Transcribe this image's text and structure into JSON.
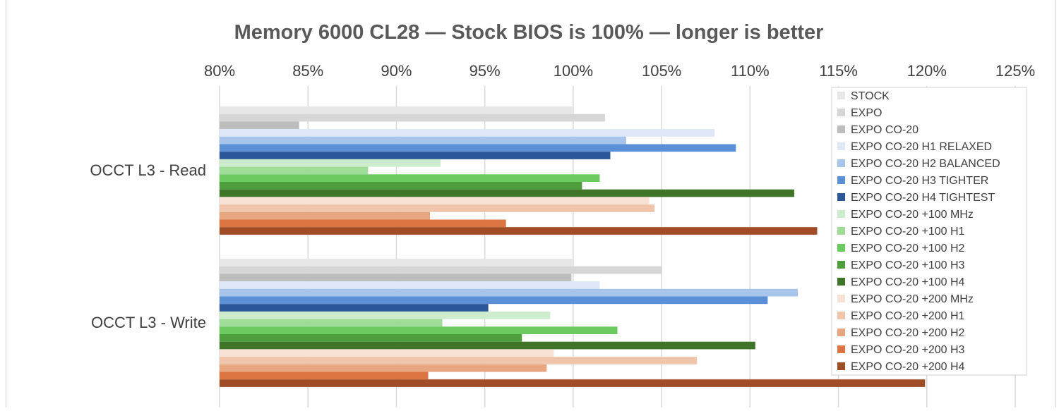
{
  "chart_data": {
    "type": "bar",
    "orientation": "horizontal",
    "title": "Memory 6000 CL28 — Stock BIOS is 100% — longer is better",
    "xlabel": "",
    "ylabel": "",
    "x_axis_position": "top",
    "xlim": [
      0.8,
      1.25
    ],
    "x_ticks": [
      0.8,
      0.85,
      0.9,
      0.95,
      1.0,
      1.05,
      1.1,
      1.15,
      1.2,
      1.25
    ],
    "x_tick_labels": [
      "80%",
      "85%",
      "90%",
      "95%",
      "100%",
      "105%",
      "110%",
      "115%",
      "120%",
      "125%"
    ],
    "grid": "vertical",
    "legend_position": "right",
    "categories": [
      "OCCT L3 - Read",
      "OCCT L3 - Write"
    ],
    "series": [
      {
        "name": "STOCK",
        "color": "#e7e7e7",
        "values": [
          1.0,
          1.0
        ]
      },
      {
        "name": "EXPO",
        "color": "#d6d6d6",
        "values": [
          1.018,
          1.05
        ]
      },
      {
        "name": "EXPO CO-20",
        "color": "#bdbdbd",
        "values": [
          0.845,
          0.999
        ]
      },
      {
        "name": "EXPO CO-20 H1 RELAXED",
        "color": "#dde7f6",
        "values": [
          1.08,
          1.015
        ]
      },
      {
        "name": "EXPO CO-20 H2 BALANCED",
        "color": "#a7c4ea",
        "values": [
          1.03,
          1.127
        ]
      },
      {
        "name": "EXPO CO-20 H3 TIGHTER",
        "color": "#5b8fd6",
        "values": [
          1.092,
          1.11
        ]
      },
      {
        "name": "EXPO CO-20 H4 TIGHTEST",
        "color": "#2b579a",
        "values": [
          1.021,
          0.952
        ]
      },
      {
        "name": "EXPO CO-20 +100 MHz",
        "color": "#cdeccd",
        "values": [
          0.925,
          0.987
        ]
      },
      {
        "name": "EXPO CO-20 +100 H1",
        "color": "#9edc98",
        "values": [
          0.884,
          0.926
        ]
      },
      {
        "name": "EXPO CO-20 +100 H2",
        "color": "#6ccb60",
        "values": [
          1.015,
          1.025
        ]
      },
      {
        "name": "EXPO CO-20 +100 H3",
        "color": "#4f9e3d",
        "values": [
          1.005,
          0.971
        ]
      },
      {
        "name": "EXPO CO-20 +100 H4",
        "color": "#3e7529",
        "values": [
          1.125,
          1.103
        ]
      },
      {
        "name": "EXPO CO-20 +200 MHz",
        "color": "#f8e2d6",
        "values": [
          1.043,
          0.989
        ]
      },
      {
        "name": "EXPO CO-20 +200 H1",
        "color": "#f0c5ac",
        "values": [
          1.046,
          1.07
        ]
      },
      {
        "name": "EXPO CO-20 +200 H2",
        "color": "#e8a680",
        "values": [
          0.919,
          0.985
        ]
      },
      {
        "name": "EXPO CO-20 +200 H3",
        "color": "#dc7541",
        "values": [
          0.962,
          0.918
        ]
      },
      {
        "name": "EXPO CO-20 +200 H4",
        "color": "#a04d26",
        "values": [
          1.138,
          1.199
        ]
      }
    ]
  }
}
